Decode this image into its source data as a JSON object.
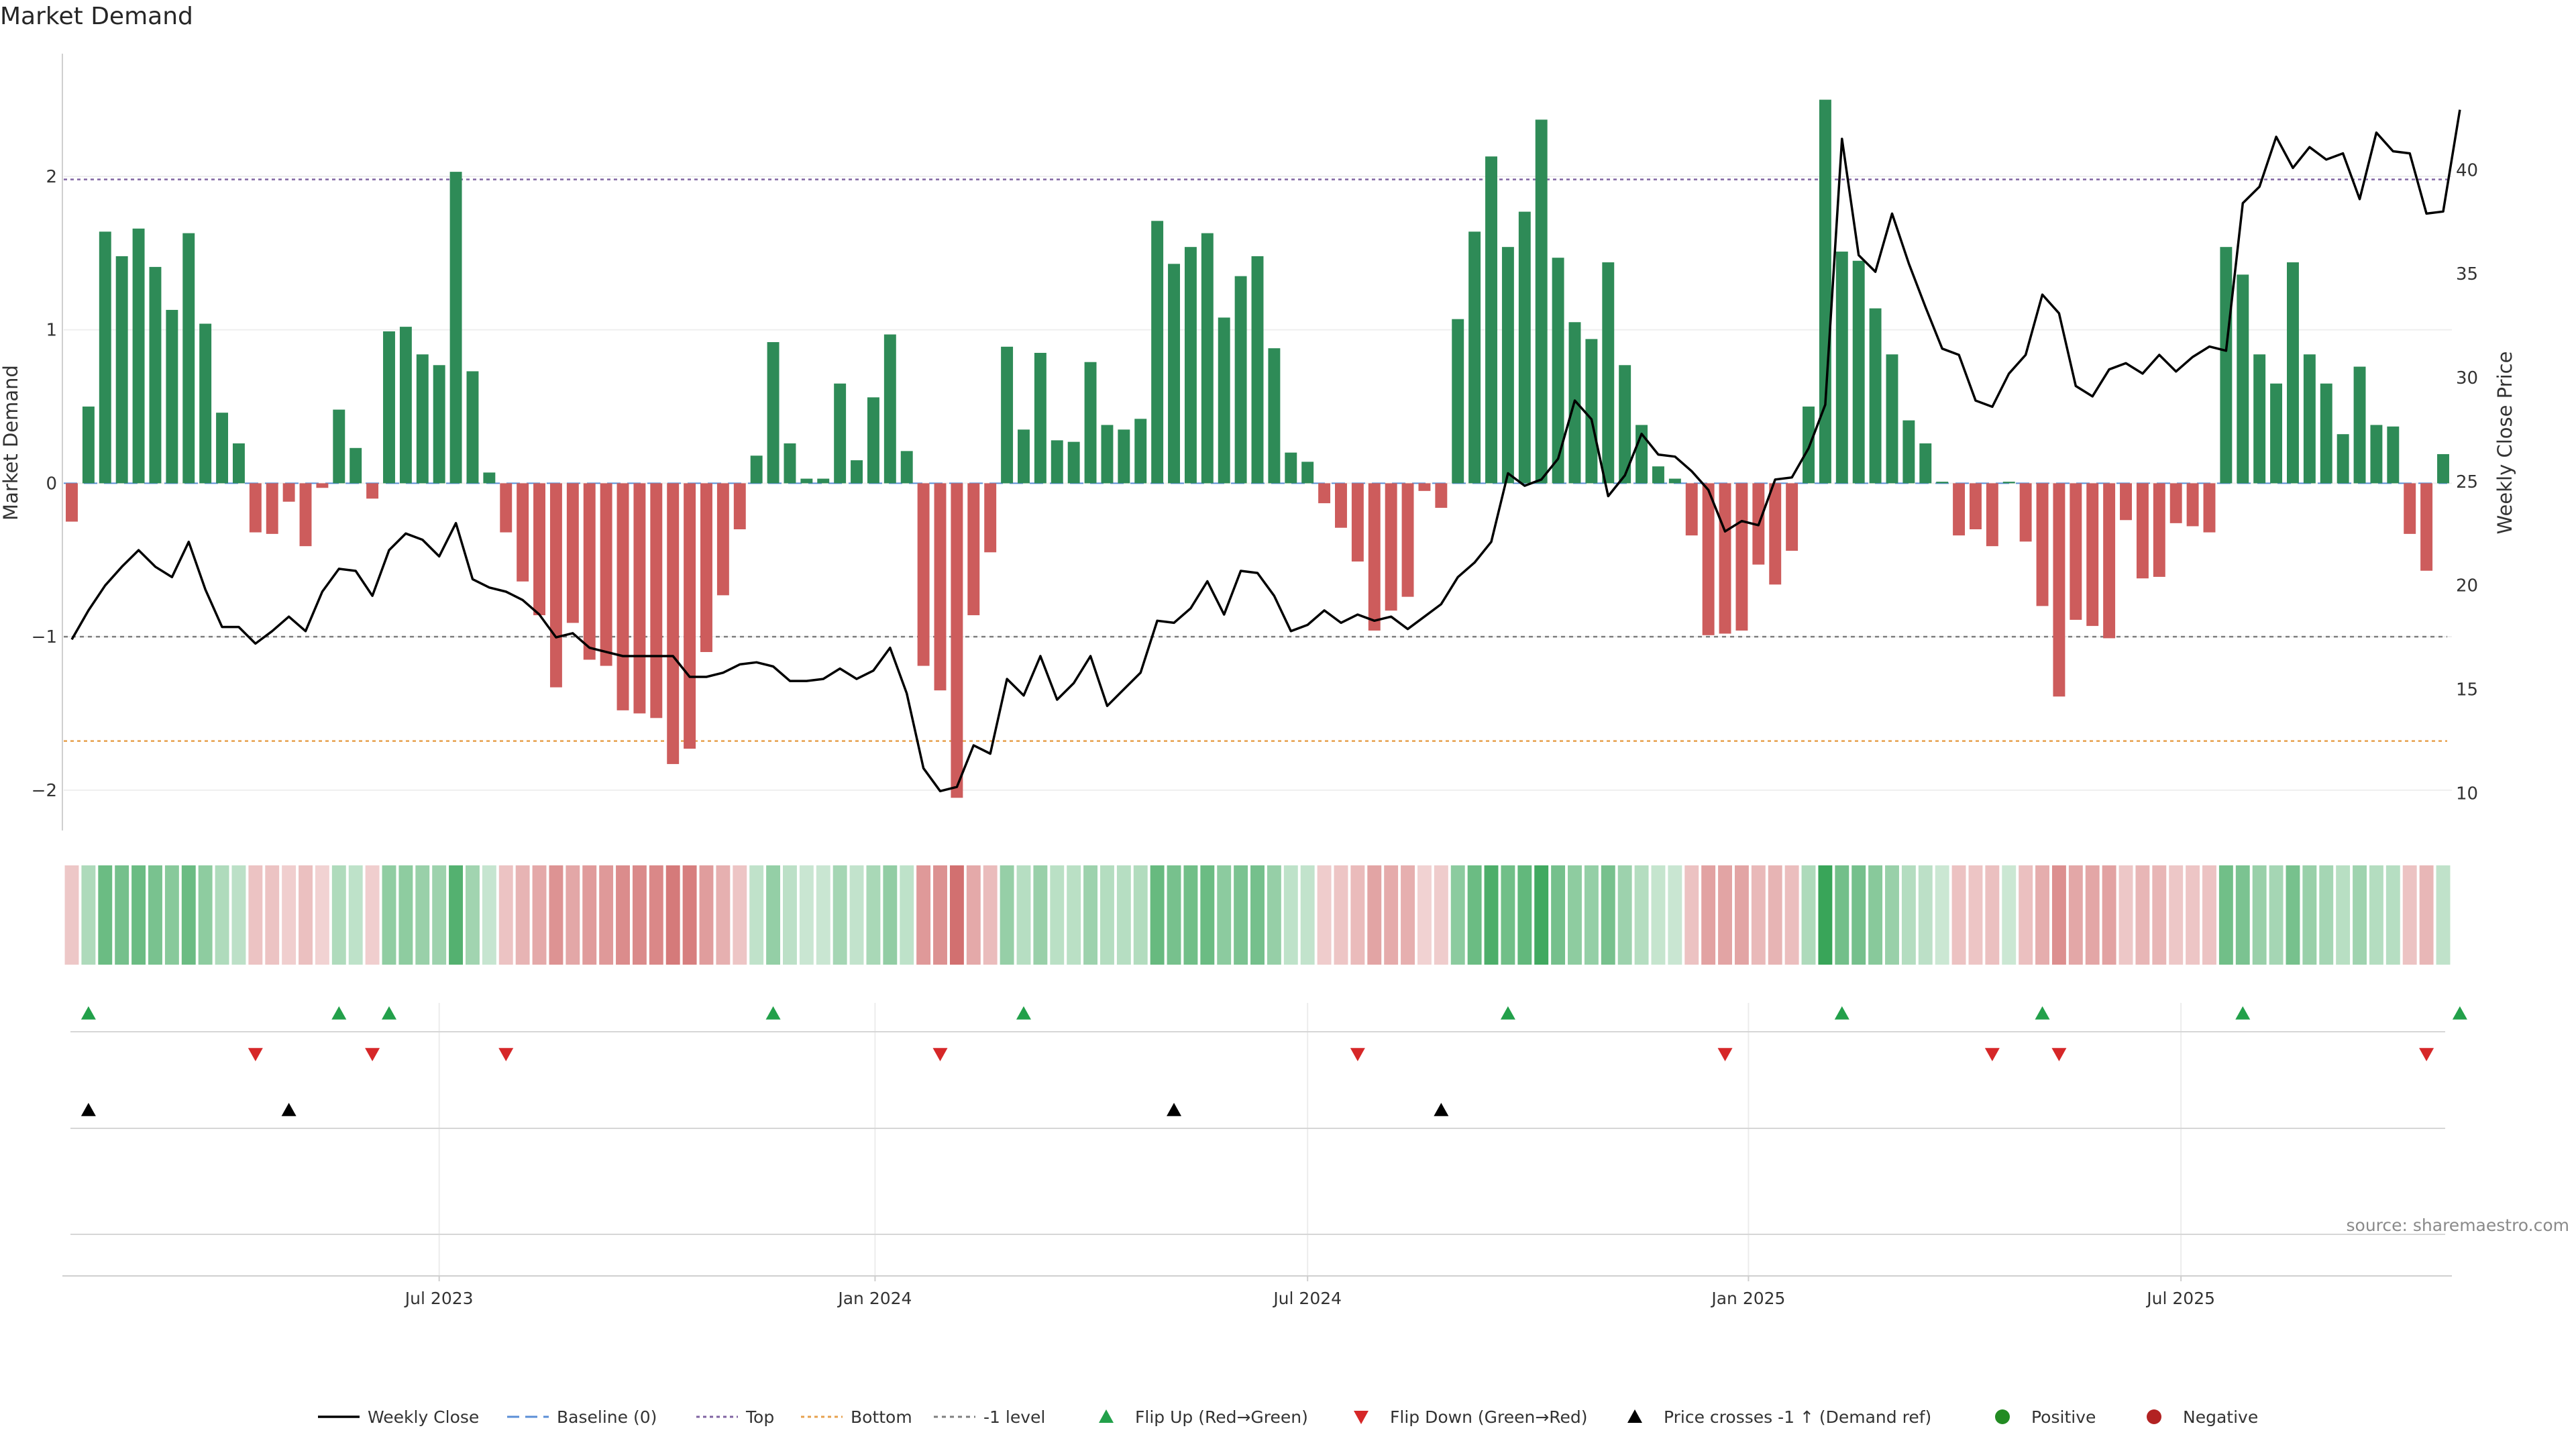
{
  "chart_data": {
    "type": "bar",
    "title": "Market Demand",
    "ylabel": "Market Demand",
    "y2label": "Weekly Close Price",
    "ylim": [
      -2.25,
      2.8
    ],
    "y2lim": [
      8.3,
      45.6
    ],
    "y_ticks": [
      -2,
      -1,
      0,
      1,
      2
    ],
    "y2_ticks": [
      10,
      15,
      20,
      25,
      30,
      35,
      40
    ],
    "x_ticks": [
      "Jul 2023",
      "Jan 2024",
      "Jul 2024",
      "Jan 2025",
      "Jul 2025"
    ],
    "x_tick_weeks": [
      22,
      48.1,
      74,
      100.4,
      126.3
    ],
    "grid": true,
    "legend_position": "bottom-center",
    "reference_lines": [
      {
        "name": "Top",
        "value": 1.98,
        "color": "#8064a2"
      },
      {
        "name": "-1 level",
        "value": -1.0,
        "color": "#7f7f7f"
      },
      {
        "name": "Bottom",
        "value": -1.68,
        "color": "#e7a14d"
      },
      {
        "name": "Baseline (0)",
        "value": 0,
        "color": "#5b8fd6"
      }
    ],
    "weeks": 144,
    "demand": [
      -0.25,
      0.5,
      1.64,
      1.48,
      1.66,
      1.41,
      1.13,
      1.63,
      1.04,
      0.46,
      0.26,
      -0.32,
      -0.33,
      -0.12,
      -0.41,
      -0.03,
      0.48,
      0.23,
      -0.1,
      0.99,
      1.02,
      0.84,
      0.77,
      2.03,
      0.73,
      0.07,
      -0.32,
      -0.64,
      -0.86,
      -1.33,
      -0.91,
      -1.15,
      -1.19,
      -1.48,
      -1.5,
      -1.53,
      -1.83,
      -1.73,
      -1.1,
      -0.73,
      -0.3,
      0.18,
      0.92,
      0.26,
      0.03,
      0.03,
      0.65,
      0.15,
      0.56,
      0.97,
      0.21,
      -1.19,
      -1.35,
      -2.05,
      -0.86,
      -0.45,
      0.89,
      0.35,
      0.85,
      0.28,
      0.27,
      0.79,
      0.38,
      0.35,
      0.42,
      1.71,
      1.43,
      1.54,
      1.63,
      1.08,
      1.35,
      1.48,
      0.88,
      0.2,
      0.14,
      -0.13,
      -0.29,
      -0.51,
      -0.96,
      -0.83,
      -0.74,
      -0.05,
      -0.16,
      1.07,
      1.64,
      2.13,
      1.54,
      1.77,
      2.37,
      1.47,
      1.05,
      0.94,
      1.44,
      0.77,
      0.38,
      0.11,
      0.03,
      -0.34,
      -0.99,
      -0.98,
      -0.96,
      -0.53,
      -0.66,
      -0.44,
      0.5,
      2.5,
      1.51,
      1.45,
      1.14,
      0.84,
      0.41,
      0.26,
      0.01,
      -0.34,
      -0.3,
      -0.41,
      0.01,
      -0.38,
      -0.8,
      -1.39,
      -0.89,
      -0.93,
      -1.01,
      -0.24,
      -0.62,
      -0.61,
      -0.26,
      -0.28,
      -0.32,
      1.54,
      1.36,
      0.84,
      0.65,
      1.44,
      0.84,
      0.65,
      0.32,
      0.76,
      0.38,
      0.37,
      -0.33,
      -0.57,
      0.19
    ],
    "weekly_close": [
      17.4,
      18.8,
      20.0,
      20.9,
      21.7,
      20.9,
      20.4,
      22.1,
      19.8,
      18.0,
      18.0,
      17.2,
      17.8,
      18.5,
      17.8,
      19.7,
      20.8,
      20.7,
      19.5,
      21.7,
      22.5,
      22.2,
      21.4,
      23.0,
      20.3,
      19.9,
      19.7,
      19.3,
      18.6,
      17.5,
      17.7,
      17.0,
      16.8,
      16.6,
      16.6,
      16.6,
      16.6,
      15.6,
      15.6,
      15.8,
      16.2,
      16.3,
      16.1,
      15.4,
      15.4,
      15.5,
      16.0,
      15.5,
      15.9,
      17.0,
      14.8,
      11.2,
      10.1,
      10.3,
      12.3,
      11.9,
      15.5,
      14.7,
      16.6,
      14.5,
      15.3,
      16.6,
      14.2,
      15.0,
      15.8,
      18.3,
      18.2,
      18.9,
      20.2,
      18.6,
      20.7,
      20.6,
      19.5,
      17.8,
      18.1,
      18.8,
      18.2,
      18.6,
      18.3,
      18.5,
      17.9,
      18.5,
      19.1,
      20.4,
      21.1,
      22.1,
      25.4,
      24.8,
      25.1,
      26.1,
      28.9,
      28.0,
      24.3,
      25.3,
      27.3,
      26.3,
      26.2,
      25.5,
      24.6,
      22.6,
      23.1,
      22.9,
      25.1,
      25.2,
      26.6,
      28.7,
      41.5,
      35.9,
      35.1,
      37.9,
      35.5,
      33.4,
      31.4,
      31.1,
      28.9,
      28.6,
      30.2,
      31.1,
      34.0,
      33.1,
      29.6,
      29.1,
      30.4,
      30.7,
      30.2,
      31.1,
      30.3,
      31.0,
      31.5,
      31.3,
      38.4,
      39.2,
      41.6,
      40.1,
      41.1,
      40.5,
      40.8,
      38.6,
      41.8,
      40.9,
      40.8,
      37.9,
      38.0,
      42.9
    ],
    "flip_up_weeks": [
      1,
      16,
      19,
      42,
      57,
      86,
      106,
      118,
      130,
      143
    ],
    "flip_down_weeks": [
      11,
      18,
      26,
      52,
      77,
      99,
      115,
      119,
      141
    ],
    "price_cross_weeks": [
      1,
      13,
      66,
      82
    ],
    "legend": [
      {
        "key": "weekly_close",
        "label": "Weekly Close"
      },
      {
        "key": "baseline",
        "label": "Baseline (0)"
      },
      {
        "key": "top",
        "label": "Top"
      },
      {
        "key": "bottom",
        "label": "Bottom"
      },
      {
        "key": "minus1",
        "label": "-1 level"
      },
      {
        "key": "flip_up",
        "label": "Flip Up (Red→Green)"
      },
      {
        "key": "flip_down",
        "label": "Flip Down (Green→Red)"
      },
      {
        "key": "price_cross",
        "label": "Price crosses -1 ↑ (Demand ref)"
      },
      {
        "key": "positive",
        "label": "Positive"
      },
      {
        "key": "negative",
        "label": "Negative"
      }
    ],
    "colors": {
      "positive": "#2e8b57",
      "negative": "#cd5c5c",
      "close": "#000000",
      "flip_up": "#22a04a",
      "flip_down": "#d62728",
      "price_cross": "#000000",
      "positive_dot": "#228b22",
      "negative_dot": "#b22222"
    },
    "source": "source: sharemaestro.com"
  }
}
